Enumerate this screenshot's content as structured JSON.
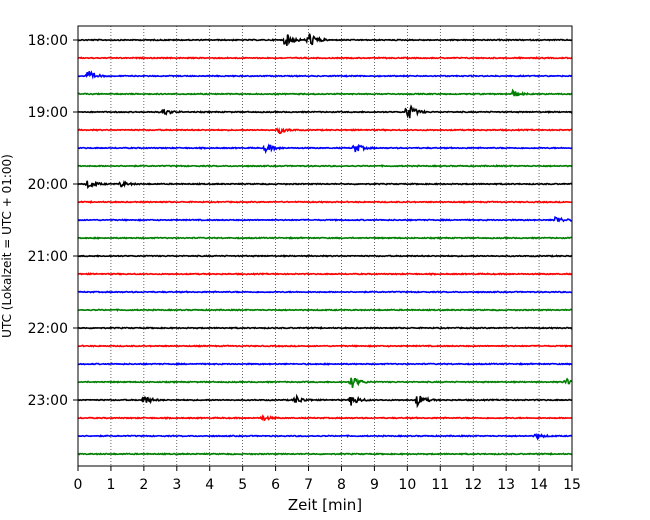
{
  "chart_data": {
    "type": "line",
    "chart_kind": "seismogram-helicorder",
    "xlabel": "Zeit  [min]",
    "ylabel": "UTC (Lokalzeit = UTC + 01:00)",
    "xlim": [
      0,
      15
    ],
    "x_ticks": [
      0,
      1,
      2,
      3,
      4,
      5,
      6,
      7,
      8,
      9,
      10,
      11,
      12,
      13,
      14,
      15
    ],
    "y_tick_labels": [
      "18:00",
      "19:00",
      "20:00",
      "21:00",
      "22:00",
      "23:00"
    ],
    "trace_start_times": [
      "18:00",
      "18:15",
      "18:30",
      "18:45",
      "19:00",
      "19:15",
      "19:30",
      "19:45",
      "20:00",
      "20:15",
      "20:30",
      "20:45",
      "21:00",
      "21:15",
      "21:30",
      "21:45",
      "22:00",
      "22:15",
      "22:30",
      "22:45",
      "23:00",
      "23:15",
      "23:30",
      "23:45"
    ],
    "trace_colors": [
      "#000000",
      "#ff0000",
      "#0000ff",
      "#008000"
    ],
    "grid": {
      "vertical_dotted": true,
      "horizontal": false
    },
    "events": [
      {
        "trace": "18:00",
        "minute": 6.3,
        "amplitude": 1.6
      },
      {
        "trace": "18:00",
        "minute": 7.0,
        "amplitude": 2.0
      },
      {
        "trace": "18:30",
        "minute": 0.3,
        "amplitude": 1.2
      },
      {
        "trace": "18:45",
        "minute": 13.2,
        "amplitude": 0.8
      },
      {
        "trace": "19:00",
        "minute": 10.0,
        "amplitude": 2.2
      },
      {
        "trace": "19:00",
        "minute": 2.6,
        "amplitude": 0.7
      },
      {
        "trace": "19:15",
        "minute": 6.1,
        "amplitude": 0.8
      },
      {
        "trace": "19:30",
        "minute": 5.7,
        "amplitude": 1.0
      },
      {
        "trace": "19:30",
        "minute": 8.4,
        "amplitude": 1.1
      },
      {
        "trace": "20:00",
        "minute": 0.3,
        "amplitude": 0.9
      },
      {
        "trace": "20:00",
        "minute": 1.3,
        "amplitude": 0.6
      },
      {
        "trace": "20:30",
        "minute": 14.5,
        "amplitude": 0.9
      },
      {
        "trace": "22:45",
        "minute": 8.3,
        "amplitude": 1.5
      },
      {
        "trace": "22:45",
        "minute": 14.8,
        "amplitude": 0.8
      },
      {
        "trace": "23:00",
        "minute": 2.0,
        "amplitude": 1.0
      },
      {
        "trace": "23:00",
        "minute": 6.6,
        "amplitude": 1.0
      },
      {
        "trace": "23:00",
        "minute": 8.3,
        "amplitude": 1.3
      },
      {
        "trace": "23:00",
        "minute": 10.3,
        "amplitude": 1.4
      },
      {
        "trace": "23:15",
        "minute": 5.6,
        "amplitude": 0.6
      },
      {
        "trace": "23:30",
        "minute": 13.9,
        "amplitude": 0.6
      }
    ]
  }
}
